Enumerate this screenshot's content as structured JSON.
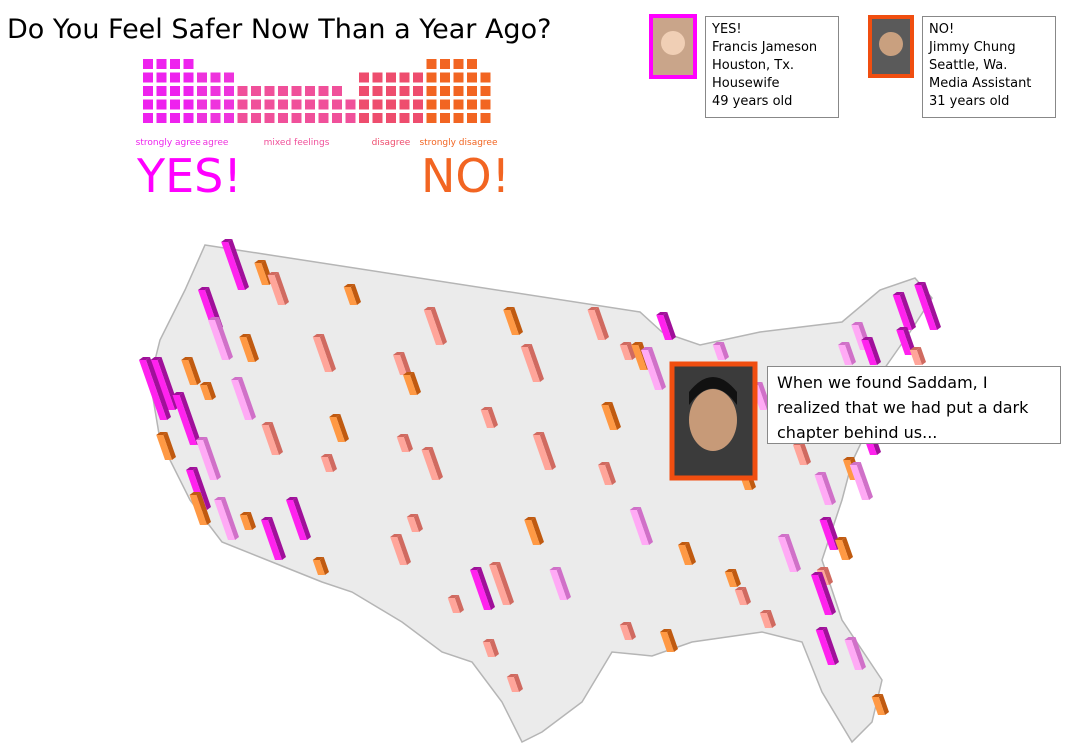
{
  "title": "Do You Feel Safer Now Than a Year Ago?",
  "scale": {
    "groups": [
      {
        "label": "strongly agree",
        "color": "#ee22ee",
        "columns": [
          5,
          5,
          5,
          5
        ]
      },
      {
        "label": "agree",
        "color": "#ee33dd",
        "columns": [
          4,
          4,
          4
        ]
      },
      {
        "label": "mixed feelings",
        "color": "#f0509a",
        "columns": [
          3,
          3,
          3,
          3,
          3,
          3,
          3,
          3,
          2
        ]
      },
      {
        "label": "disagree",
        "color": "#ee4d6e",
        "columns": [
          4,
          4,
          4,
          4,
          4
        ]
      },
      {
        "label": "strongly disagree",
        "color": "#f26522",
        "columns": [
          5,
          5,
          5,
          5,
          4
        ]
      }
    ]
  },
  "verdicts": {
    "yes": "YES!",
    "no": "NO!"
  },
  "profiles": [
    {
      "answer": "YES!",
      "name": "Francis Jameson",
      "location": "Houston, Tx.",
      "occupation": "Housewife",
      "age": "49 years old"
    },
    {
      "answer": "NO!",
      "name": "Jimmy Chung",
      "location": "Seattle, Wa.",
      "occupation": "Media Assistant",
      "age": "31 years old"
    }
  ],
  "quote": "When we found Saddam, I realized that we had put a dark chapter behind us..."
}
